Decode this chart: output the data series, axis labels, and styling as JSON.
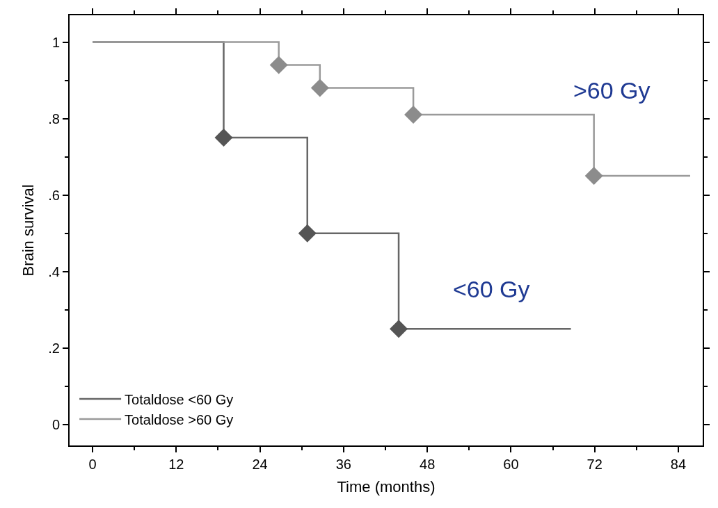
{
  "chart_data": {
    "type": "step",
    "xlabel": "Time (months)",
    "ylabel": "Brain survival",
    "xlim": [
      -3.3,
      87.5
    ],
    "ylim": [
      -0.055,
      1.07
    ],
    "xticks": [
      0,
      12,
      24,
      36,
      48,
      60,
      72,
      84
    ],
    "yticks": [
      0,
      {
        "value": 0.2,
        "label": ".2"
      },
      {
        "value": 0.4,
        "label": ".4"
      },
      {
        "value": 0.6,
        "label": ".6"
      },
      {
        "value": 0.8,
        "label": ".8"
      },
      1
    ],
    "legend": "bottom left",
    "series": [
      {
        "name": "Totaldose <60 Gy",
        "color": "#666666",
        "marker": "none",
        "x": [
          0,
          18.8,
          30.8,
          43.9,
          68.6
        ],
        "values": [
          1,
          0.75,
          0.5,
          0.25,
          0.25
        ]
      },
      {
        "type": "scatter",
        "color": "#555555",
        "marker": "diamond",
        "x": [
          18.8,
          30.8,
          43.9
        ],
        "values": [
          0.75,
          0.5,
          0.25
        ]
      },
      {
        "name": "Totaldose >60 Gy",
        "color": "#9a9a9a",
        "marker": "none",
        "x": [
          0,
          26.7,
          32.6,
          46.0,
          71.9,
          85.7
        ],
        "values": [
          1,
          0.94,
          0.88,
          0.81,
          0.65,
          0.65
        ]
      },
      {
        "type": "scatter",
        "color": "#8c8c8c",
        "marker": "diamond",
        "x": [
          26.7,
          32.6,
          46.0,
          71.9
        ],
        "values": [
          0.94,
          0.88,
          0.81,
          0.65
        ]
      }
    ],
    "annotations": [
      ">60 Gy",
      "<60 Gy"
    ]
  }
}
